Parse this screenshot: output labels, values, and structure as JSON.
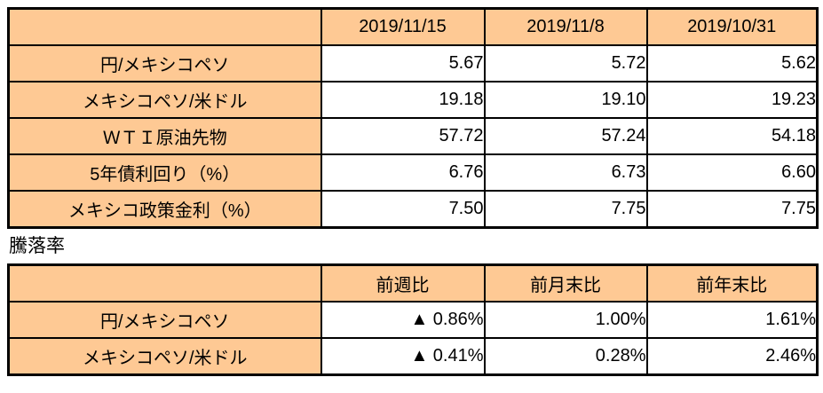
{
  "colors": {
    "header_fill": "#fec994",
    "border": "#000000",
    "text": "#000000",
    "page_bg": "#ffffff"
  },
  "rates_table": {
    "corner_label": "",
    "columns": [
      "2019/11/15",
      "2019/11/8",
      "2019/10/31"
    ],
    "rows": [
      {
        "label": "円/メキシコペソ",
        "values": [
          "5.67",
          "5.72",
          "5.62"
        ]
      },
      {
        "label": "メキシコペソ/米ドル",
        "values": [
          "19.18",
          "19.10",
          "19.23"
        ]
      },
      {
        "label": "ＷＴＩ原油先物",
        "values": [
          "57.72",
          "57.24",
          "54.18"
        ]
      },
      {
        "label": "5年債利回り（%）",
        "values": [
          "6.76",
          "6.73",
          "6.60"
        ]
      },
      {
        "label": "メキシコ政策金利（%）",
        "values": [
          "7.50",
          "7.75",
          "7.75"
        ]
      }
    ]
  },
  "section_title": "騰落率",
  "change_table": {
    "corner_label": "",
    "columns": [
      "前週比",
      "前月末比",
      "前年末比"
    ],
    "rows": [
      {
        "label": "円/メキシコペソ",
        "values": [
          "▲ 0.86%",
          "1.00%",
          "1.61%"
        ]
      },
      {
        "label": "メキシコペソ/米ドル",
        "values": [
          "▲ 0.41%",
          "0.28%",
          "2.46%"
        ]
      }
    ]
  }
}
